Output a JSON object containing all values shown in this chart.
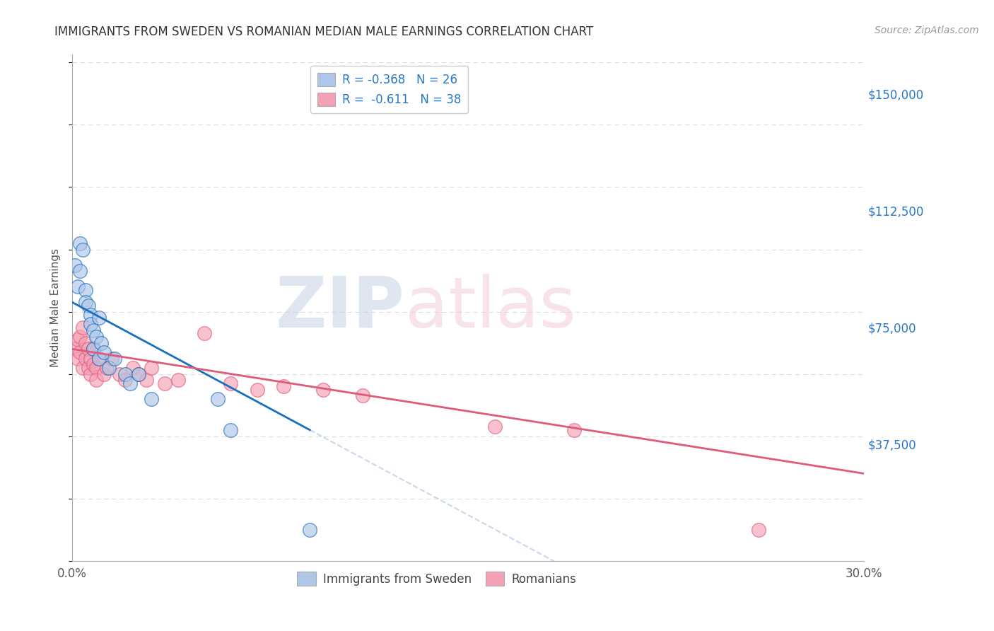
{
  "title": "IMMIGRANTS FROM SWEDEN VS ROMANIAN MEDIAN MALE EARNINGS CORRELATION CHART",
  "source": "Source: ZipAtlas.com",
  "ylabel": "Median Male Earnings",
  "xlim": [
    0.0,
    0.3
  ],
  "ylim": [
    0,
    162500
  ],
  "yticks": [
    0,
    37500,
    75000,
    112500,
    150000
  ],
  "ytick_labels": [
    "",
    "$37,500",
    "$75,000",
    "$112,500",
    "$150,000"
  ],
  "xticks": [
    0.0,
    0.05,
    0.1,
    0.15,
    0.2,
    0.25,
    0.3
  ],
  "legend_label_sweden": "Immigrants from Sweden",
  "legend_label_romanian": "Romanians",
  "legend_R_sweden": "R = -0.368",
  "legend_N_sweden": "N = 26",
  "legend_R_romanian": "R =  -0.611",
  "legend_N_romanian": "N = 38",
  "sweden_x": [
    0.001,
    0.002,
    0.003,
    0.003,
    0.004,
    0.005,
    0.005,
    0.006,
    0.007,
    0.007,
    0.008,
    0.008,
    0.009,
    0.01,
    0.01,
    0.011,
    0.012,
    0.014,
    0.016,
    0.02,
    0.022,
    0.025,
    0.03,
    0.055,
    0.06,
    0.09
  ],
  "sweden_y": [
    95000,
    88000,
    102000,
    93000,
    100000,
    87000,
    83000,
    82000,
    79000,
    76000,
    74000,
    68000,
    72000,
    65000,
    78000,
    70000,
    67000,
    62000,
    65000,
    60000,
    57000,
    60000,
    52000,
    52000,
    42000,
    10000
  ],
  "romanian_x": [
    0.001,
    0.002,
    0.002,
    0.003,
    0.003,
    0.004,
    0.004,
    0.005,
    0.005,
    0.006,
    0.006,
    0.007,
    0.007,
    0.008,
    0.008,
    0.009,
    0.009,
    0.01,
    0.012,
    0.013,
    0.015,
    0.018,
    0.02,
    0.023,
    0.025,
    0.028,
    0.03,
    0.035,
    0.04,
    0.05,
    0.06,
    0.07,
    0.08,
    0.095,
    0.11,
    0.16,
    0.19,
    0.26
  ],
  "romanian_y": [
    68000,
    71000,
    65000,
    72000,
    67000,
    75000,
    62000,
    70000,
    65000,
    68000,
    62000,
    65000,
    60000,
    68000,
    63000,
    62000,
    58000,
    65000,
    60000,
    62000,
    65000,
    60000,
    58000,
    62000,
    60000,
    58000,
    62000,
    57000,
    58000,
    73000,
    57000,
    55000,
    56000,
    55000,
    53000,
    43000,
    42000,
    10000
  ],
  "sweden_color": "#aec6e8",
  "swedish_line_color": "#1a6fbd",
  "romanian_color": "#f4a0b5",
  "romanian_line_color": "#e05a7a",
  "dashed_line_color": "#c8d8ea",
  "background_color": "#ffffff",
  "grid_color": "#dddddd",
  "title_color": "#333333",
  "axis_color": "#555555",
  "scatter_alpha": 0.65,
  "scatter_size": 200,
  "R_sweden": -0.368,
  "N_sweden": 26,
  "R_romanian": -0.611,
  "N_romanian": 38,
  "trend_sweden_x0": 0.0,
  "trend_sweden_y0": 83000,
  "trend_sweden_x1": 0.09,
  "trend_sweden_y1": 42000,
  "trend_romanian_x0": 0.0,
  "trend_romanian_y0": 68000,
  "trend_romanian_x1": 0.3,
  "trend_romanian_y1": 28000
}
